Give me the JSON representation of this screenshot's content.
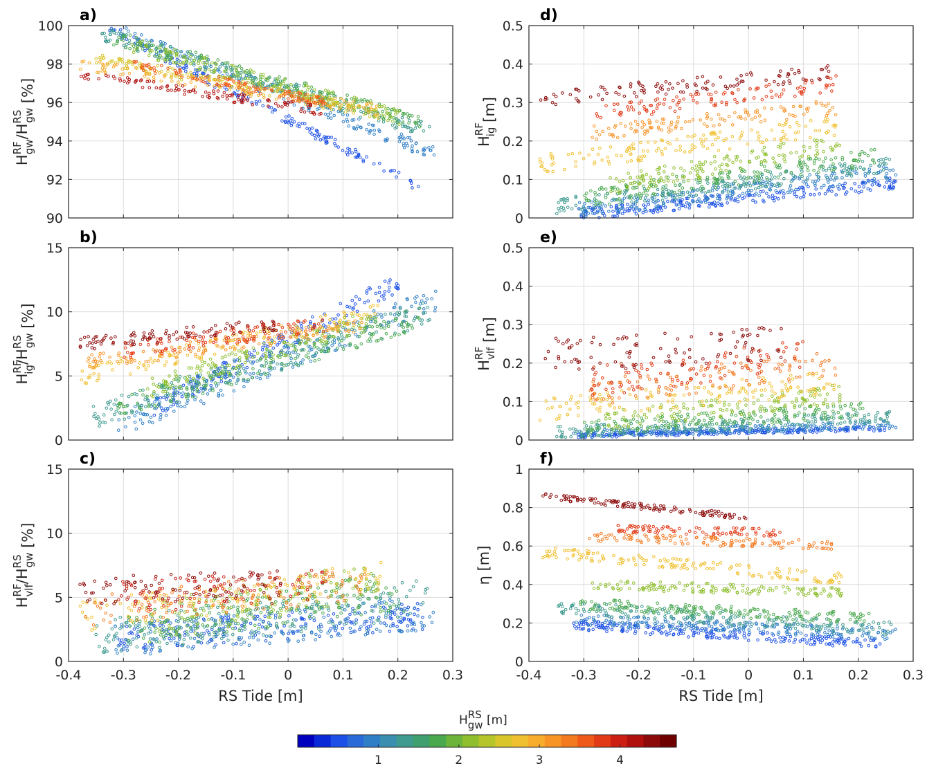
{
  "colormap": [
    "#0000bf",
    "#0a2ad8",
    "#1c50e6",
    "#2a6ad8",
    "#2f7fc7",
    "#3a8fb0",
    "#3f9a8f",
    "#3f9f6e",
    "#4aa84e",
    "#6cb53a",
    "#8fbf2f",
    "#b5c52a",
    "#d8c62a",
    "#f0c030",
    "#f7ac2c",
    "#f89326",
    "#f47a20",
    "#ef5a1a",
    "#e23a16",
    "#cc1e12",
    "#b0100e",
    "#8c0a0a",
    "#6e0000"
  ],
  "colorbar": {
    "label_main": "H",
    "label_sup": "RS",
    "label_sub": "gw",
    "label_unit": " [m]",
    "min": 0.0,
    "max": 4.7,
    "ticks": [
      1,
      2,
      3,
      4
    ],
    "tick_labels": [
      "1",
      "2",
      "3",
      "4"
    ]
  },
  "chart_data": [
    {
      "id": "a",
      "type": "scatter",
      "panel_label": "a)",
      "ylabel": {
        "main": "H",
        "sup1": "RF",
        "sub1": "gw",
        "mid": "/H",
        "sup2": "RS",
        "sub2": "gw",
        "unit": " [%]"
      },
      "xlabel": "",
      "xlim": [
        -0.4,
        0.3
      ],
      "ylim": [
        90,
        100
      ],
      "xticks": [
        -0.4,
        -0.3,
        -0.2,
        -0.1,
        0,
        0.1,
        0.2,
        0.3
      ],
      "yticks": [
        90,
        92,
        94,
        96,
        98,
        100
      ],
      "ytick_labels": [
        "90",
        "92",
        "94",
        "96",
        "98",
        "100"
      ],
      "xtick_labels": [],
      "grid": true,
      "bands": [
        {
          "h": 0.5,
          "x0": -0.33,
          "x1": 0.24,
          "y0": 99.9,
          "y1": 91.6,
          "spread": 0.5,
          "n": 160
        },
        {
          "h": 0.9,
          "x0": -0.31,
          "x1": 0.27,
          "y0": 99.8,
          "y1": 93.3,
          "spread": 0.7,
          "n": 180
        },
        {
          "h": 1.3,
          "x0": -0.34,
          "x1": 0.26,
          "y0": 99.6,
          "y1": 94.5,
          "spread": 0.8,
          "n": 200
        },
        {
          "h": 1.7,
          "x0": -0.32,
          "x1": 0.24,
          "y0": 99.4,
          "y1": 95.0,
          "spread": 0.8,
          "n": 200
        },
        {
          "h": 2.1,
          "x0": -0.29,
          "x1": 0.21,
          "y0": 99.0,
          "y1": 95.2,
          "spread": 0.8,
          "n": 170
        },
        {
          "h": 2.6,
          "x0": -0.35,
          "x1": 0.17,
          "y0": 98.3,
          "y1": 95.4,
          "spread": 0.6,
          "n": 150
        },
        {
          "h": 3.0,
          "x0": -0.38,
          "x1": 0.17,
          "y0": 98.0,
          "y1": 95.6,
          "spread": 0.6,
          "n": 130
        },
        {
          "h": 3.5,
          "x0": -0.29,
          "x1": 0.07,
          "y0": 98.0,
          "y1": 96.0,
          "spread": 0.5,
          "n": 110
        },
        {
          "h": 4.2,
          "x0": -0.38,
          "x1": 0.06,
          "y0": 97.4,
          "y1": 95.6,
          "spread": 0.5,
          "n": 110
        }
      ]
    },
    {
      "id": "b",
      "type": "scatter",
      "panel_label": "b)",
      "ylabel": {
        "main": "H",
        "sup1": "RF",
        "sub1": "ig",
        "mid": "/H",
        "sup2": "RS",
        "sub2": "gw",
        "unit": " [%]"
      },
      "xlabel": "",
      "xlim": [
        -0.4,
        0.3
      ],
      "ylim": [
        0,
        15
      ],
      "xticks": [
        -0.4,
        -0.3,
        -0.2,
        -0.1,
        0,
        0.1,
        0.2,
        0.3
      ],
      "yticks": [
        0,
        5,
        10,
        15
      ],
      "ytick_labels": [
        "0",
        "5",
        "10",
        "15"
      ],
      "xtick_labels": [],
      "grid": true,
      "bands": [
        {
          "h": 0.5,
          "x0": -0.25,
          "x1": 0.21,
          "y0": 2.4,
          "y1": 12.5,
          "spread": 1.5,
          "n": 170
        },
        {
          "h": 0.9,
          "x0": -0.31,
          "x1": 0.27,
          "y0": 1.2,
          "y1": 11.0,
          "spread": 2.0,
          "n": 200
        },
        {
          "h": 1.3,
          "x0": -0.36,
          "x1": 0.26,
          "y0": 1.8,
          "y1": 10.0,
          "spread": 2.0,
          "n": 200
        },
        {
          "h": 1.7,
          "x0": -0.31,
          "x1": 0.24,
          "y0": 2.5,
          "y1": 9.5,
          "spread": 1.8,
          "n": 180
        },
        {
          "h": 2.1,
          "x0": -0.26,
          "x1": 0.16,
          "y0": 4.0,
          "y1": 9.5,
          "spread": 1.6,
          "n": 150
        },
        {
          "h": 2.7,
          "x0": -0.38,
          "x1": 0.17,
          "y0": 5.0,
          "y1": 10.0,
          "spread": 1.4,
          "n": 140
        },
        {
          "h": 3.2,
          "x0": -0.37,
          "x1": 0.14,
          "y0": 6.0,
          "y1": 9.0,
          "spread": 1.2,
          "n": 120
        },
        {
          "h": 3.8,
          "x0": -0.3,
          "x1": 0.07,
          "y0": 7.0,
          "y1": 9.0,
          "spread": 1.3,
          "n": 110
        },
        {
          "h": 4.3,
          "x0": -0.38,
          "x1": -0.02,
          "y0": 7.5,
          "y1": 9.0,
          "spread": 1.0,
          "n": 100
        }
      ]
    },
    {
      "id": "c",
      "type": "scatter",
      "panel_label": "c)",
      "ylabel": {
        "main": "H",
        "sup1": "RF",
        "sub1": "vlf",
        "mid": "/H",
        "sup2": "RS",
        "sub2": "gw",
        "unit": " [%]"
      },
      "xlabel": "RS Tide [m]",
      "xlim": [
        -0.4,
        0.3
      ],
      "ylim": [
        0,
        15
      ],
      "xticks": [
        -0.4,
        -0.3,
        -0.2,
        -0.1,
        0,
        0.1,
        0.2,
        0.3
      ],
      "yticks": [
        0,
        5,
        10,
        15
      ],
      "ytick_labels": [
        "0",
        "5",
        "10",
        "15"
      ],
      "xtick_labels": [
        "-0.4",
        "-0.3",
        "-0.2",
        "-0.1",
        "0",
        "0.1",
        "0.2",
        "0.3"
      ],
      "grid": true,
      "bands": [
        {
          "h": 0.5,
          "x0": -0.31,
          "x1": 0.25,
          "y0": 1.8,
          "y1": 3.5,
          "spread": 2.2,
          "n": 190
        },
        {
          "h": 0.9,
          "x0": -0.32,
          "x1": 0.27,
          "y0": 1.6,
          "y1": 3.8,
          "spread": 2.6,
          "n": 210
        },
        {
          "h": 1.3,
          "x0": -0.35,
          "x1": 0.26,
          "y0": 1.8,
          "y1": 5.0,
          "spread": 3.0,
          "n": 200
        },
        {
          "h": 1.7,
          "x0": -0.3,
          "x1": 0.2,
          "y0": 2.5,
          "y1": 5.5,
          "spread": 3.0,
          "n": 170
        },
        {
          "h": 2.1,
          "x0": -0.26,
          "x1": 0.17,
          "y0": 3.0,
          "y1": 6.5,
          "spread": 3.2,
          "n": 140
        },
        {
          "h": 2.7,
          "x0": -0.38,
          "x1": 0.17,
          "y0": 3.5,
          "y1": 6.5,
          "spread": 2.5,
          "n": 130
        },
        {
          "h": 3.3,
          "x0": -0.37,
          "x1": 0.14,
          "y0": 4.0,
          "y1": 6.0,
          "spread": 2.5,
          "n": 110
        },
        {
          "h": 3.9,
          "x0": -0.31,
          "x1": 0.07,
          "y0": 5.0,
          "y1": 6.0,
          "spread": 2.5,
          "n": 100
        },
        {
          "h": 4.4,
          "x0": -0.38,
          "x1": -0.01,
          "y0": 5.5,
          "y1": 6.0,
          "spread": 2.2,
          "n": 90
        }
      ]
    },
    {
      "id": "d",
      "type": "scatter",
      "panel_label": "d)",
      "ylabel": {
        "main": "H",
        "sup1": "RF",
        "sub1": "ig",
        "mid": "",
        "sup2": "",
        "sub2": "",
        "unit": " [m]"
      },
      "xlabel": "",
      "xlim": [
        -0.4,
        0.3
      ],
      "ylim": [
        0,
        0.5
      ],
      "xticks": [
        -0.4,
        -0.3,
        -0.2,
        -0.1,
        0,
        0.1,
        0.2,
        0.3
      ],
      "yticks": [
        0,
        0.1,
        0.2,
        0.3,
        0.4,
        0.5
      ],
      "ytick_labels": [
        "0",
        "0.1",
        "0.2",
        "0.3",
        "0.4",
        "0.5"
      ],
      "xtick_labels": [],
      "grid": true,
      "bands": [
        {
          "h": 0.5,
          "x0": -0.31,
          "x1": 0.27,
          "y0": 0.01,
          "y1": 0.09,
          "spread": 0.03,
          "n": 220
        },
        {
          "h": 0.9,
          "x0": -0.31,
          "x1": 0.27,
          "y0": 0.02,
          "y1": 0.12,
          "spread": 0.04,
          "n": 220
        },
        {
          "h": 1.3,
          "x0": -0.35,
          "x1": 0.26,
          "y0": 0.03,
          "y1": 0.14,
          "spread": 0.04,
          "n": 200
        },
        {
          "h": 1.7,
          "x0": -0.3,
          "x1": 0.23,
          "y0": 0.05,
          "y1": 0.16,
          "spread": 0.05,
          "n": 180
        },
        {
          "h": 2.2,
          "x0": -0.26,
          "x1": 0.17,
          "y0": 0.08,
          "y1": 0.2,
          "spread": 0.05,
          "n": 150
        },
        {
          "h": 2.7,
          "x0": -0.38,
          "x1": 0.16,
          "y0": 0.14,
          "y1": 0.24,
          "spread": 0.05,
          "n": 150
        },
        {
          "h": 3.2,
          "x0": -0.29,
          "x1": 0.17,
          "y0": 0.22,
          "y1": 0.29,
          "spread": 0.04,
          "n": 120
        },
        {
          "h": 3.7,
          "x0": -0.28,
          "x1": 0.16,
          "y0": 0.27,
          "y1": 0.35,
          "spread": 0.04,
          "n": 110
        },
        {
          "h": 4.4,
          "x0": -0.38,
          "x1": 0.16,
          "y0": 0.31,
          "y1": 0.38,
          "spread": 0.04,
          "n": 110
        }
      ]
    },
    {
      "id": "e",
      "type": "scatter",
      "panel_label": "e)",
      "ylabel": {
        "main": "H",
        "sup1": "RF",
        "sub1": "vlf",
        "mid": "",
        "sup2": "",
        "sub2": "",
        "unit": " [m]"
      },
      "xlabel": "",
      "xlim": [
        -0.4,
        0.3
      ],
      "ylim": [
        0,
        0.5
      ],
      "xticks": [
        -0.4,
        -0.3,
        -0.2,
        -0.1,
        0,
        0.1,
        0.2,
        0.3
      ],
      "yticks": [
        0,
        0.1,
        0.2,
        0.3,
        0.4,
        0.5
      ],
      "ytick_labels": [
        "0",
        "0.1",
        "0.2",
        "0.3",
        "0.4",
        "0.5"
      ],
      "xtick_labels": [],
      "grid": true,
      "bands": [
        {
          "h": 0.5,
          "x0": -0.31,
          "x1": 0.25,
          "y0": 0.012,
          "y1": 0.03,
          "spread": 0.012,
          "n": 220
        },
        {
          "h": 0.9,
          "x0": -0.32,
          "x1": 0.27,
          "y0": 0.015,
          "y1": 0.04,
          "spread": 0.02,
          "n": 220
        },
        {
          "h": 1.3,
          "x0": -0.35,
          "x1": 0.26,
          "y0": 0.02,
          "y1": 0.06,
          "spread": 0.03,
          "n": 200
        },
        {
          "h": 1.7,
          "x0": -0.3,
          "x1": 0.21,
          "y0": 0.03,
          "y1": 0.08,
          "spread": 0.04,
          "n": 170
        },
        {
          "h": 2.2,
          "x0": -0.26,
          "x1": 0.17,
          "y0": 0.05,
          "y1": 0.12,
          "spread": 0.05,
          "n": 140
        },
        {
          "h": 2.7,
          "x0": -0.38,
          "x1": 0.16,
          "y0": 0.08,
          "y1": 0.15,
          "spread": 0.06,
          "n": 140
        },
        {
          "h": 3.3,
          "x0": -0.29,
          "x1": 0.16,
          "y0": 0.12,
          "y1": 0.2,
          "spread": 0.07,
          "n": 110
        },
        {
          "h": 3.8,
          "x0": -0.29,
          "x1": 0.1,
          "y0": 0.15,
          "y1": 0.22,
          "spread": 0.08,
          "n": 100
        },
        {
          "h": 4.4,
          "x0": -0.38,
          "x1": 0.06,
          "y0": 0.22,
          "y1": 0.25,
          "spread": 0.09,
          "n": 100
        }
      ]
    },
    {
      "id": "f",
      "type": "scatter",
      "panel_label": "f)",
      "ylabel": {
        "main": "η",
        "sup1": "",
        "sub1": "",
        "mid": "",
        "sup2": "",
        "sub2": "",
        "unit": " [m]"
      },
      "xlabel": "RS Tide [m]",
      "xlim": [
        -0.4,
        0.3
      ],
      "ylim": [
        0,
        1
      ],
      "xticks": [
        -0.4,
        -0.3,
        -0.2,
        -0.1,
        0,
        0.1,
        0.2,
        0.3
      ],
      "yticks": [
        0,
        0.2,
        0.4,
        0.6,
        0.8,
        1
      ],
      "ytick_labels": [
        "0",
        "0.2",
        "0.4",
        "0.6",
        "0.8",
        "1"
      ],
      "xtick_labels": [
        "-0.4",
        "-0.3",
        "-0.2",
        "-0.1",
        "0",
        "0.1",
        "0.2",
        "0.3"
      ],
      "grid": true,
      "bands": [
        {
          "h": 0.5,
          "x0": -0.32,
          "x1": 0.24,
          "y0": 0.19,
          "y1": 0.09,
          "spread": 0.05,
          "n": 220
        },
        {
          "h": 0.9,
          "x0": -0.32,
          "x1": 0.27,
          "y0": 0.22,
          "y1": 0.14,
          "spread": 0.06,
          "n": 220
        },
        {
          "h": 1.3,
          "x0": -0.35,
          "x1": 0.26,
          "y0": 0.28,
          "y1": 0.17,
          "spread": 0.07,
          "n": 200
        },
        {
          "h": 1.7,
          "x0": -0.31,
          "x1": 0.22,
          "y0": 0.3,
          "y1": 0.22,
          "spread": 0.06,
          "n": 170
        },
        {
          "h": 2.2,
          "x0": -0.29,
          "x1": 0.17,
          "y0": 0.4,
          "y1": 0.36,
          "spread": 0.05,
          "n": 140
        },
        {
          "h": 2.7,
          "x0": -0.38,
          "x1": 0.17,
          "y0": 0.57,
          "y1": 0.43,
          "spread": 0.06,
          "n": 150
        },
        {
          "h": 3.3,
          "x0": -0.29,
          "x1": 0.16,
          "y0": 0.65,
          "y1": 0.6,
          "spread": 0.05,
          "n": 120
        },
        {
          "h": 3.8,
          "x0": -0.24,
          "x1": 0.06,
          "y0": 0.69,
          "y1": 0.67,
          "spread": 0.04,
          "n": 90
        },
        {
          "h": 4.4,
          "x0": -0.38,
          "x1": 0.0,
          "y0": 0.86,
          "y1": 0.75,
          "spread": 0.03,
          "n": 120
        }
      ]
    }
  ]
}
